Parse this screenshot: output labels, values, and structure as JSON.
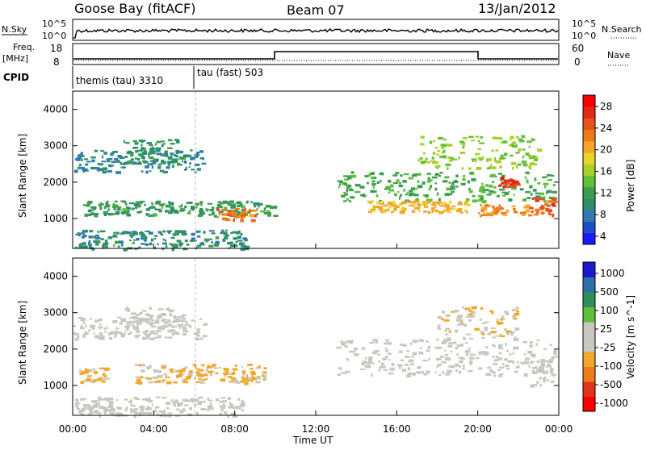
{
  "header": {
    "station": "Goose Bay (fitACF)",
    "beam": "Beam 07",
    "date": "13/Jan/2012"
  },
  "top_panels": {
    "nsky_label": "N.Sky",
    "nsearch_label": "N.Search",
    "noise_ticks": [
      "10^5",
      "10^0"
    ],
    "noise_ticks_right": [
      "10^5",
      "10^0"
    ],
    "freq_label": "Freq.",
    "freq_unit": "[MHz]",
    "freq_ticks": [
      "18",
      "8"
    ],
    "nave_label": "Nave",
    "nave_ticks": [
      "60",
      "0"
    ],
    "cpid_label": "CPID",
    "cpid_modes": [
      "themis (tau) 3310",
      "tau (fast) 503"
    ]
  },
  "colors": {
    "power_scale": [
      "#1a1aff",
      "#1f4fc8",
      "#2f7ab0",
      "#2f8f6a",
      "#3a9e4e",
      "#62bf3a",
      "#a9d02a",
      "#e8d52a",
      "#f2a72a",
      "#ee7a1e",
      "#e5531a",
      "#e02a1a",
      "#ff0000"
    ],
    "velocity_scale": [
      "#ff0000",
      "#e0351a",
      "#ee7a1e",
      "#f2a72a",
      "#c8c8c0",
      "#c8c8c0",
      "#5fbf3a",
      "#2f8f5a",
      "#2f6fa8",
      "#1a1acc"
    ]
  },
  "chart_data": [
    {
      "type": "heatmap",
      "panel": "power",
      "ylabel": "Slant Range [km]",
      "yticks": [
        "4000",
        "3000",
        "2000",
        "1000"
      ],
      "xlim": [
        "00:00",
        "00:00"
      ],
      "ylim": [
        180,
        4500
      ],
      "colorbar": {
        "label": "Power [dB]",
        "ticks": [
          "28",
          "24",
          "20",
          "16",
          "12",
          "8",
          "4"
        ],
        "range": [
          0,
          30
        ]
      },
      "regions": [
        {
          "t": [
            0.0,
            6.5
          ],
          "r": [
            2300,
            2900
          ],
          "value": 7
        },
        {
          "t": [
            2.5,
            5.5
          ],
          "r": [
            2500,
            3200
          ],
          "value": 9
        },
        {
          "t": [
            0.5,
            10.0
          ],
          "r": [
            1100,
            1500
          ],
          "value": 10
        },
        {
          "t": [
            7.0,
            9.0
          ],
          "r": [
            950,
            1300
          ],
          "value": 22
        },
        {
          "t": [
            0.0,
            8.5
          ],
          "r": [
            180,
            700
          ],
          "value": 8
        },
        {
          "t": [
            13.0,
            23.8
          ],
          "r": [
            1500,
            2300
          ],
          "value": 11
        },
        {
          "t": [
            14.5,
            19.5
          ],
          "r": [
            1200,
            1500
          ],
          "value": 19
        },
        {
          "t": [
            20.0,
            22.5
          ],
          "r": [
            1100,
            1400
          ],
          "value": 21
        },
        {
          "t": [
            21.0,
            22.0
          ],
          "r": [
            1900,
            2200
          ],
          "value": 26
        },
        {
          "t": [
            17.0,
            23.0
          ],
          "r": [
            2400,
            3300
          ],
          "value": 14
        },
        {
          "t": [
            22.5,
            23.8
          ],
          "r": [
            1100,
            1600
          ],
          "value": 24
        }
      ]
    },
    {
      "type": "heatmap",
      "panel": "velocity",
      "ylabel": "Slant Range [km]",
      "xlabel": "Time UT",
      "xticks": [
        "00:00",
        "04:00",
        "08:00",
        "12:00",
        "16:00",
        "20:00",
        "00:00"
      ],
      "yticks": [
        "4000",
        "3000",
        "2000",
        "1000"
      ],
      "xlim": [
        "00:00",
        "00:00"
      ],
      "ylim": [
        180,
        4500
      ],
      "colorbar": {
        "label": "Velocity [m s^-1]",
        "ticks": [
          "1000",
          "500",
          "100",
          "25",
          "-25",
          "-100",
          "-500",
          "-1000"
        ],
        "range": [
          -1000,
          1000
        ]
      },
      "regions": [
        {
          "t": [
            0.0,
            6.5
          ],
          "r": [
            2300,
            2900
          ],
          "value": 0
        },
        {
          "t": [
            2.5,
            5.5
          ],
          "r": [
            2500,
            3200
          ],
          "value": 0
        },
        {
          "t": [
            0.3,
            1.8
          ],
          "r": [
            1100,
            1500
          ],
          "value": -250
        },
        {
          "t": [
            3.0,
            9.5
          ],
          "r": [
            1100,
            1600
          ],
          "value": -250
        },
        {
          "t": [
            0.0,
            8.5
          ],
          "r": [
            180,
            700
          ],
          "value": 50
        },
        {
          "t": [
            13.0,
            23.8
          ],
          "r": [
            1300,
            2300
          ],
          "value": 0
        },
        {
          "t": [
            18.0,
            22.0
          ],
          "r": [
            2300,
            3200
          ],
          "value": -150
        },
        {
          "t": [
            22.5,
            23.8
          ],
          "r": [
            1000,
            1700
          ],
          "value": 60
        }
      ]
    }
  ]
}
